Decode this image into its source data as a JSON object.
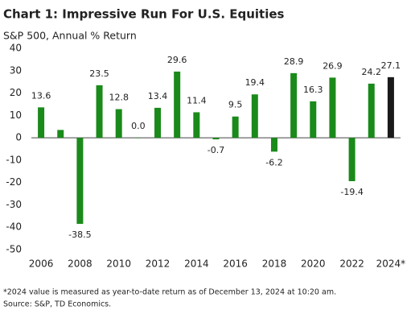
{
  "chart_data": {
    "type": "bar",
    "title": "Chart 1: Impressive Run For U.S. Equities",
    "subtitle": "S&P 500, Annual % Return",
    "categories": [
      "2006",
      null,
      "2008",
      null,
      "2010",
      null,
      "2012",
      null,
      "2014",
      null,
      "2016",
      null,
      "2018",
      null,
      "2020",
      null,
      "2022",
      null,
      "2024*"
    ],
    "values": [
      13.6,
      3.5,
      -38.5,
      23.5,
      12.8,
      0.0,
      13.4,
      29.6,
      11.4,
      -0.7,
      9.5,
      19.4,
      -6.2,
      28.9,
      16.3,
      26.9,
      -19.4,
      24.2,
      27.1
    ],
    "value_labels": [
      "13.6",
      null,
      "-38.5",
      "23.5",
      "12.8",
      "0.0",
      "13.4",
      "29.6",
      "11.4",
      "-0.7",
      "9.5",
      "19.4",
      "-6.2",
      "28.9",
      "16.3",
      "26.9",
      "-19.4",
      "24.2",
      "27.1"
    ],
    "colors": [
      "#1a8a1a",
      "#1a8a1a",
      "#1a8a1a",
      "#1a8a1a",
      "#1a8a1a",
      "#1a8a1a",
      "#1a8a1a",
      "#1a8a1a",
      "#1a8a1a",
      "#1a8a1a",
      "#1a8a1a",
      "#1a8a1a",
      "#1a8a1a",
      "#1a8a1a",
      "#1a8a1a",
      "#1a8a1a",
      "#1a8a1a",
      "#1a8a1a",
      "#1a1a1a"
    ],
    "ylim": [
      -50,
      40
    ],
    "yticks": [
      -50,
      -40,
      -30,
      -20,
      -10,
      0,
      10,
      20,
      30,
      40
    ],
    "grid": false,
    "footnote": "*2024 value is measured  as year-to-date return as of December 13, 2024 at 10:20 am.",
    "source": "Source: S&P, TD Economics."
  }
}
